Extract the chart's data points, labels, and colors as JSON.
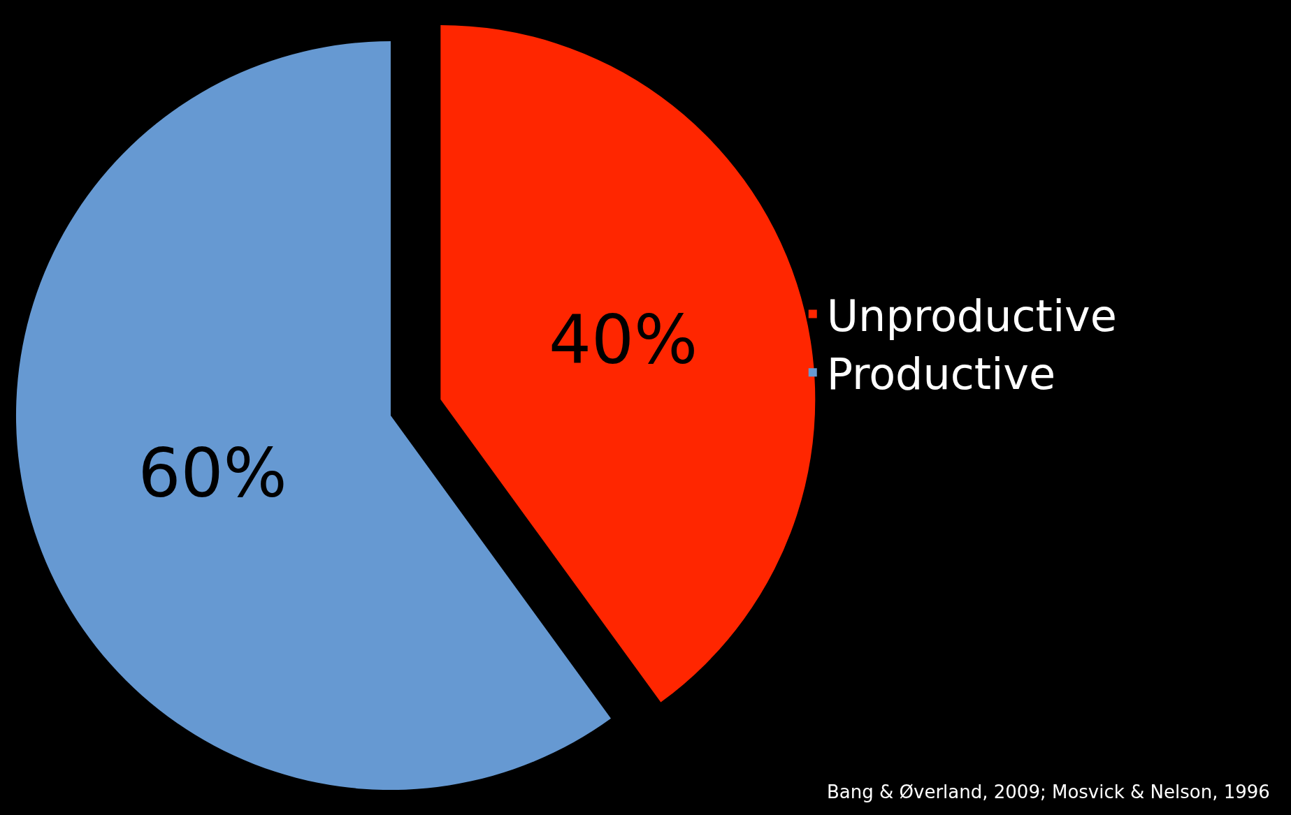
{
  "chart_data": {
    "type": "pie",
    "categories": [
      "Unproductive",
      "Productive"
    ],
    "values": [
      40,
      60
    ],
    "colors": [
      "#ff2600",
      "#6699d2"
    ],
    "value_labels": [
      "40%",
      "60%"
    ],
    "legend": "right",
    "annotations": [
      "Bang & Øverland, 2009; Mosvick & Nelson, 1996"
    ]
  }
}
